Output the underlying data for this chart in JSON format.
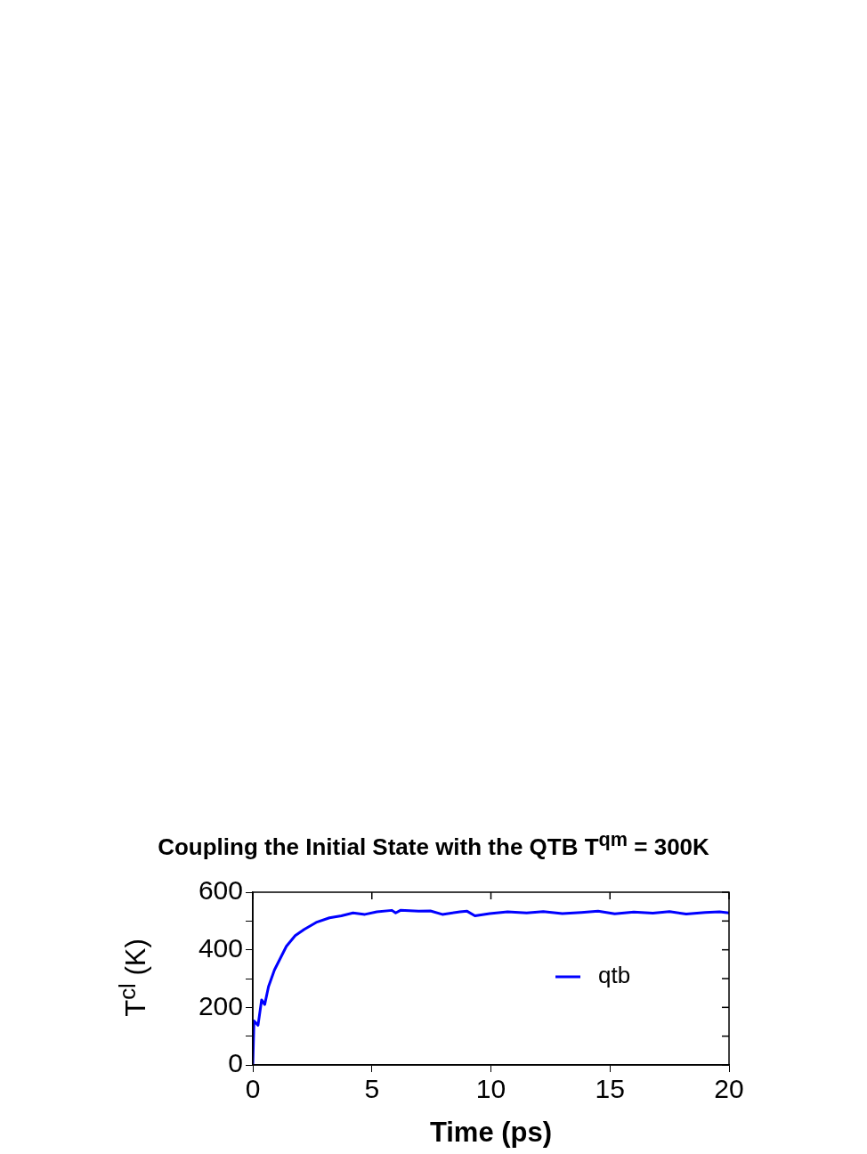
{
  "chart_data": {
    "type": "line",
    "title": "Coupling the Initial State with the QTB T$^{qm}$ = 300K",
    "xlabel": "Time (ps)",
    "ylabel": "T$^{cl}$ (K)",
    "x": [
      0,
      0.05,
      0.22,
      0.37,
      0.5,
      0.66,
      0.91,
      1.16,
      1.41,
      1.78,
      2.16,
      2.66,
      3.22,
      3.72,
      4.21,
      4.71,
      5.21,
      5.84,
      6.0,
      6.2,
      6.96,
      7.46,
      7.96,
      8.7,
      9.0,
      9.33,
      9.95,
      10.7,
      11.5,
      12.2,
      13.0,
      13.8,
      14.5,
      15.2,
      16.0,
      16.8,
      17.5,
      18.2,
      19.0,
      19.6,
      20
    ],
    "series": [
      {
        "name": "qtb",
        "color": "#0000ff",
        "values": [
          0,
          153,
          138,
          226,
          210,
          272,
          330,
          371,
          412,
          449,
          471,
          495,
          511,
          518,
          528,
          523,
          532,
          537,
          528,
          537,
          534,
          535,
          523,
          532,
          534,
          518,
          526,
          532,
          528,
          533,
          526,
          530,
          534,
          525,
          531,
          527,
          533,
          524,
          530,
          532,
          528
        ]
      }
    ],
    "xlim": [
      0,
      20
    ],
    "xticks": [
      0,
      5,
      10,
      15,
      20
    ],
    "ylim": [
      0,
      600
    ],
    "yticks": [
      0,
      {
        "value": 100,
        "label": null
      },
      200,
      {
        "value": 300,
        "label": null
      },
      400,
      {
        "value": 500,
        "label": null
      },
      600
    ],
    "legend": "right",
    "marker": "none",
    "line_style": "solid",
    "grid": false
  }
}
